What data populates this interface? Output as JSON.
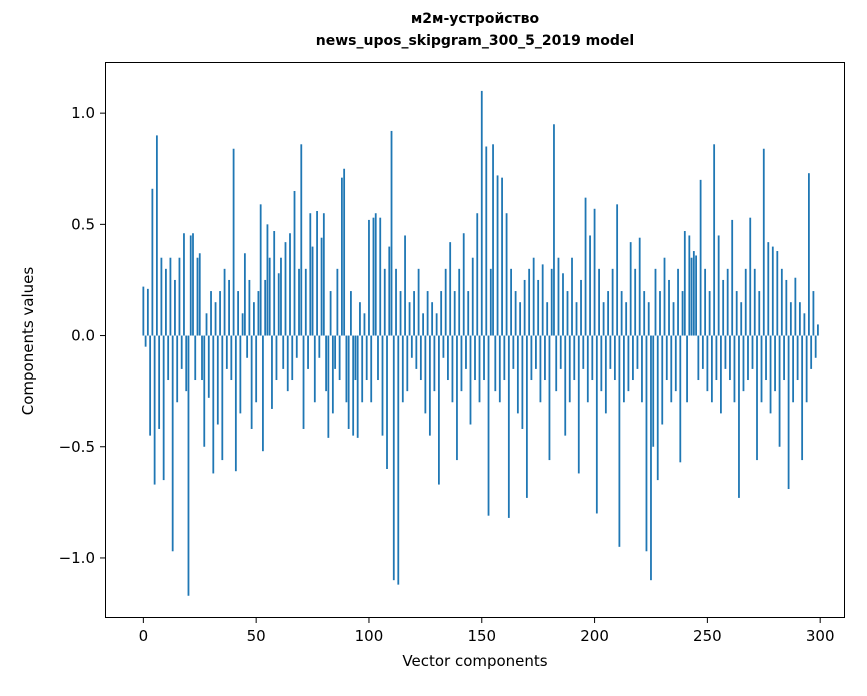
{
  "figure": {
    "title_line1": "м2м-устройство",
    "title_line2": "news_upos_skipgram_300_5_2019 model",
    "xlabel": "Vector components",
    "ylabel": "Components values"
  },
  "chart_data": {
    "type": "bar",
    "title": "м2м-устройство\nnews_upos_skipgram_300_5_2019 model",
    "xlabel": "Vector components",
    "ylabel": "Components values",
    "bar_color": "#1f77b4",
    "grid": false,
    "legend": "none",
    "x_ticks": [
      0,
      50,
      100,
      150,
      200,
      250,
      300
    ],
    "y_ticks": [
      -1.0,
      -0.5,
      0.0,
      0.5,
      1.0
    ],
    "xlim": [
      -17,
      311
    ],
    "ylim": [
      -1.27,
      1.23
    ],
    "values": [
      0.22,
      -0.05,
      0.21,
      -0.45,
      0.66,
      -0.67,
      0.9,
      -0.42,
      0.35,
      -0.65,
      0.3,
      -0.2,
      0.35,
      -0.97,
      0.25,
      -0.3,
      0.35,
      -0.15,
      0.46,
      -0.25,
      -1.17,
      0.45,
      0.46,
      -0.2,
      0.35,
      0.37,
      -0.2,
      -0.5,
      0.1,
      -0.28,
      0.2,
      -0.62,
      0.15,
      -0.4,
      0.2,
      -0.56,
      0.3,
      -0.15,
      0.25,
      -0.2,
      0.84,
      -0.61,
      0.2,
      -0.35,
      0.1,
      0.37,
      -0.1,
      0.25,
      -0.42,
      0.15,
      -0.3,
      0.2,
      0.59,
      -0.52,
      0.25,
      0.5,
      0.35,
      -0.33,
      0.47,
      -0.2,
      0.28,
      0.35,
      -0.15,
      0.42,
      -0.25,
      0.46,
      -0.2,
      0.65,
      -0.1,
      0.3,
      0.86,
      -0.42,
      0.3,
      -0.15,
      0.55,
      0.4,
      -0.3,
      0.56,
      -0.1,
      0.44,
      0.55,
      -0.25,
      -0.46,
      0.2,
      -0.35,
      -0.15,
      0.3,
      -0.2,
      0.71,
      0.75,
      -0.3,
      -0.42,
      0.2,
      -0.45,
      -0.2,
      -0.46,
      0.15,
      -0.3,
      0.1,
      -0.2,
      0.52,
      -0.3,
      0.53,
      0.55,
      -0.2,
      0.53,
      -0.45,
      0.3,
      -0.6,
      0.4,
      0.92,
      -1.1,
      0.3,
      -1.12,
      0.2,
      -0.3,
      0.45,
      -0.25,
      0.15,
      -0.1,
      0.2,
      -0.15,
      0.3,
      -0.2,
      0.1,
      -0.35,
      0.2,
      -0.45,
      0.15,
      -0.25,
      0.1,
      -0.67,
      0.2,
      -0.1,
      0.3,
      -0.2,
      0.42,
      -0.3,
      0.2,
      -0.56,
      0.3,
      -0.25,
      0.46,
      -0.15,
      0.2,
      -0.4,
      0.35,
      -0.2,
      0.55,
      -0.3,
      1.1,
      -0.2,
      0.85,
      -0.81,
      0.3,
      0.86,
      -0.25,
      0.72,
      -0.3,
      0.71,
      -0.2,
      0.55,
      -0.82,
      0.3,
      -0.15,
      0.2,
      -0.35,
      0.15,
      -0.42,
      0.25,
      -0.73,
      0.3,
      -0.2,
      0.35,
      -0.15,
      0.25,
      -0.3,
      0.32,
      -0.2,
      0.15,
      -0.56,
      0.3,
      0.95,
      -0.25,
      0.35,
      -0.15,
      0.28,
      -0.45,
      0.2,
      -0.3,
      0.35,
      -0.2,
      0.15,
      -0.62,
      0.25,
      -0.15,
      0.62,
      -0.3,
      0.45,
      -0.2,
      0.57,
      -0.8,
      0.3,
      -0.25,
      0.15,
      -0.35,
      0.2,
      -0.15,
      0.3,
      -0.2,
      0.59,
      -0.95,
      0.2,
      -0.3,
      0.15,
      -0.25,
      0.42,
      -0.2,
      0.3,
      -0.15,
      0.44,
      -0.3,
      0.2,
      -0.97,
      0.15,
      -1.1,
      -0.5,
      0.3,
      -0.65,
      0.2,
      -0.4,
      0.35,
      -0.2,
      0.25,
      -0.3,
      0.15,
      -0.25,
      0.3,
      -0.57,
      0.2,
      0.47,
      -0.3,
      0.45,
      0.35,
      0.38,
      0.36,
      -0.2,
      0.7,
      -0.15,
      0.3,
      -0.25,
      0.2,
      -0.3,
      0.86,
      -0.2,
      0.45,
      -0.35,
      0.25,
      -0.15,
      0.3,
      -0.2,
      0.52,
      -0.3,
      0.2,
      -0.73,
      0.15,
      -0.25,
      0.3,
      -0.2,
      0.53,
      -0.15,
      0.3,
      -0.56,
      0.2,
      -0.3,
      0.84,
      -0.2,
      0.42,
      -0.35,
      0.4,
      -0.25,
      0.38,
      -0.5,
      0.3,
      -0.2,
      0.25,
      -0.69,
      0.15,
      -0.3,
      0.26,
      -0.2,
      0.15,
      -0.56,
      0.1,
      -0.3,
      0.73,
      -0.15,
      0.2,
      -0.1,
      0.05
    ]
  }
}
